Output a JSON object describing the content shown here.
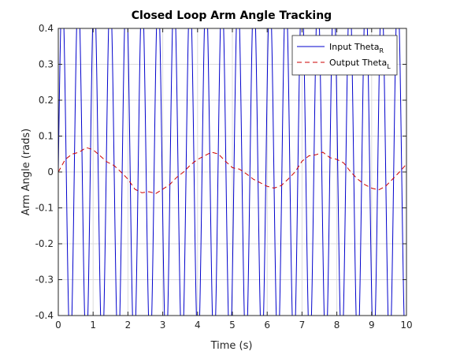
{
  "chart_data": {
    "type": "line",
    "title": "Closed Loop Arm Angle Tracking",
    "xlabel": "Time (s)",
    "ylabel": "Arm Angle (rads)",
    "xlim": [
      0,
      10
    ],
    "ylim": [
      -0.4,
      0.4
    ],
    "xticks": [
      0,
      1,
      2,
      3,
      4,
      5,
      6,
      7,
      8,
      9,
      10
    ],
    "yticks": [
      0.4,
      0.3,
      0.2,
      0.1,
      0,
      -0.1,
      -0.2,
      -0.3,
      -0.4
    ],
    "xtick_labels": [
      "0",
      "1",
      "2",
      "3",
      "4",
      "5",
      "6",
      "7",
      "8",
      "9",
      "10"
    ],
    "ytick_labels": [
      "0.4",
      "0.3",
      "0.2",
      "0.1",
      "0",
      "-0.1",
      "-0.2",
      "-0.3",
      "-0.4"
    ],
    "grid": true,
    "legend_position": "top-right",
    "series": [
      {
        "name": "Input Theta",
        "subscript": "R",
        "color": "#0000cc",
        "style": "solid",
        "model": "sinusoid",
        "amplitude": 0.5,
        "frequency_hz": 2.18,
        "samples": 1200
      },
      {
        "name": "Output Theta",
        "subscript": "L",
        "color": "#cc0000",
        "style": "dashed",
        "model": "points",
        "x": [
          0,
          0.2,
          0.4,
          0.6,
          0.8,
          1.0,
          1.2,
          1.4,
          1.6,
          1.8,
          2.0,
          2.2,
          2.4,
          2.6,
          2.8,
          3.0,
          3.2,
          3.4,
          3.6,
          3.8,
          4.0,
          4.2,
          4.4,
          4.6,
          4.8,
          5.0,
          5.2,
          5.4,
          5.6,
          5.8,
          6.0,
          6.2,
          6.4,
          6.6,
          6.8,
          7.0,
          7.2,
          7.4,
          7.6,
          7.8,
          8.0,
          8.2,
          8.4,
          8.6,
          8.8,
          9.0,
          9.2,
          9.4,
          9.6,
          9.8,
          10.0
        ],
        "y": [
          0.0,
          0.035,
          0.05,
          0.055,
          0.068,
          0.062,
          0.045,
          0.028,
          0.018,
          0.0,
          -0.02,
          -0.048,
          -0.058,
          -0.055,
          -0.06,
          -0.048,
          -0.035,
          -0.015,
          0.0,
          0.02,
          0.035,
          0.045,
          0.055,
          0.05,
          0.03,
          0.012,
          0.008,
          -0.005,
          -0.02,
          -0.03,
          -0.04,
          -0.045,
          -0.038,
          -0.02,
          0.0,
          0.03,
          0.045,
          0.048,
          0.055,
          0.04,
          0.035,
          0.025,
          0.0,
          -0.02,
          -0.035,
          -0.045,
          -0.05,
          -0.04,
          -0.02,
          0.0,
          0.022
        ]
      }
    ]
  }
}
